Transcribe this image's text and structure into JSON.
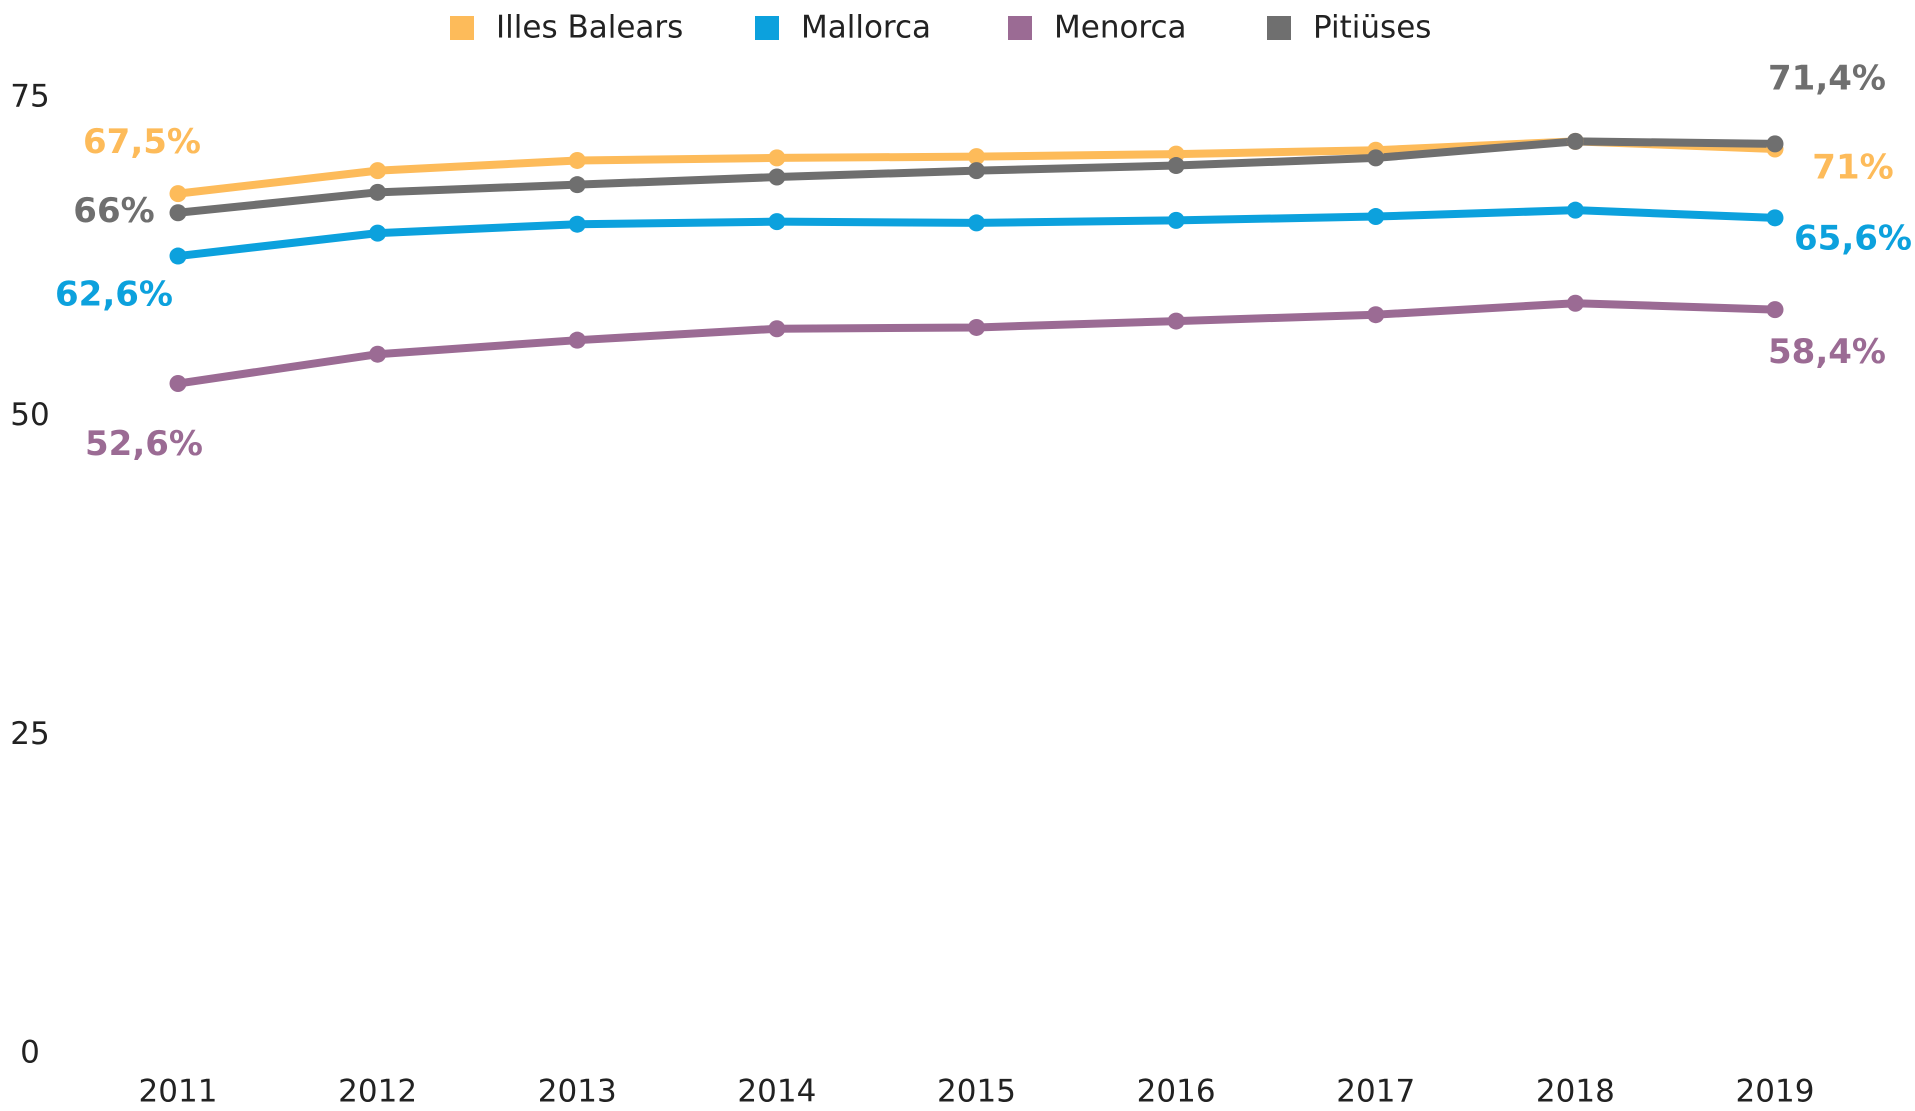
{
  "chart_data": {
    "type": "line",
    "categories": [
      "2011",
      "2012",
      "2013",
      "2014",
      "2015",
      "2016",
      "2017",
      "2018",
      "2019"
    ],
    "series": [
      {
        "name": "Illes Balears",
        "color": "#fdbb5a",
        "values": [
          67.5,
          69.3,
          70.1,
          70.3,
          70.4,
          70.6,
          70.9,
          71.6,
          71.0
        ],
        "value_labels": [
          "67,5%",
          null,
          null,
          null,
          null,
          null,
          null,
          null,
          "71%"
        ]
      },
      {
        "name": "Mallorca",
        "color": "#0ca1dd",
        "values": [
          62.6,
          64.4,
          65.1,
          65.3,
          65.2,
          65.4,
          65.7,
          66.2,
          65.6
        ],
        "value_labels": [
          "62,6%",
          null,
          null,
          null,
          null,
          null,
          null,
          null,
          "65,6%"
        ]
      },
      {
        "name": "Menorca",
        "color": "#9b6b94",
        "values": [
          52.6,
          54.9,
          56.0,
          56.9,
          57.0,
          57.5,
          58.0,
          58.9,
          58.4
        ],
        "value_labels": [
          "52,6%",
          null,
          null,
          null,
          null,
          null,
          null,
          null,
          "58,4%"
        ]
      },
      {
        "name": "Pitiüses",
        "color": "#6f6f6f",
        "values": [
          66.0,
          67.6,
          68.2,
          68.8,
          69.3,
          69.7,
          70.3,
          71.6,
          71.4
        ],
        "value_labels": [
          "66%",
          null,
          null,
          null,
          null,
          null,
          null,
          null,
          "71,4%"
        ]
      }
    ],
    "ylim": [
      0,
      75
    ],
    "yticks": [
      0,
      25,
      50,
      75
    ],
    "grid": false,
    "legend": "top"
  }
}
